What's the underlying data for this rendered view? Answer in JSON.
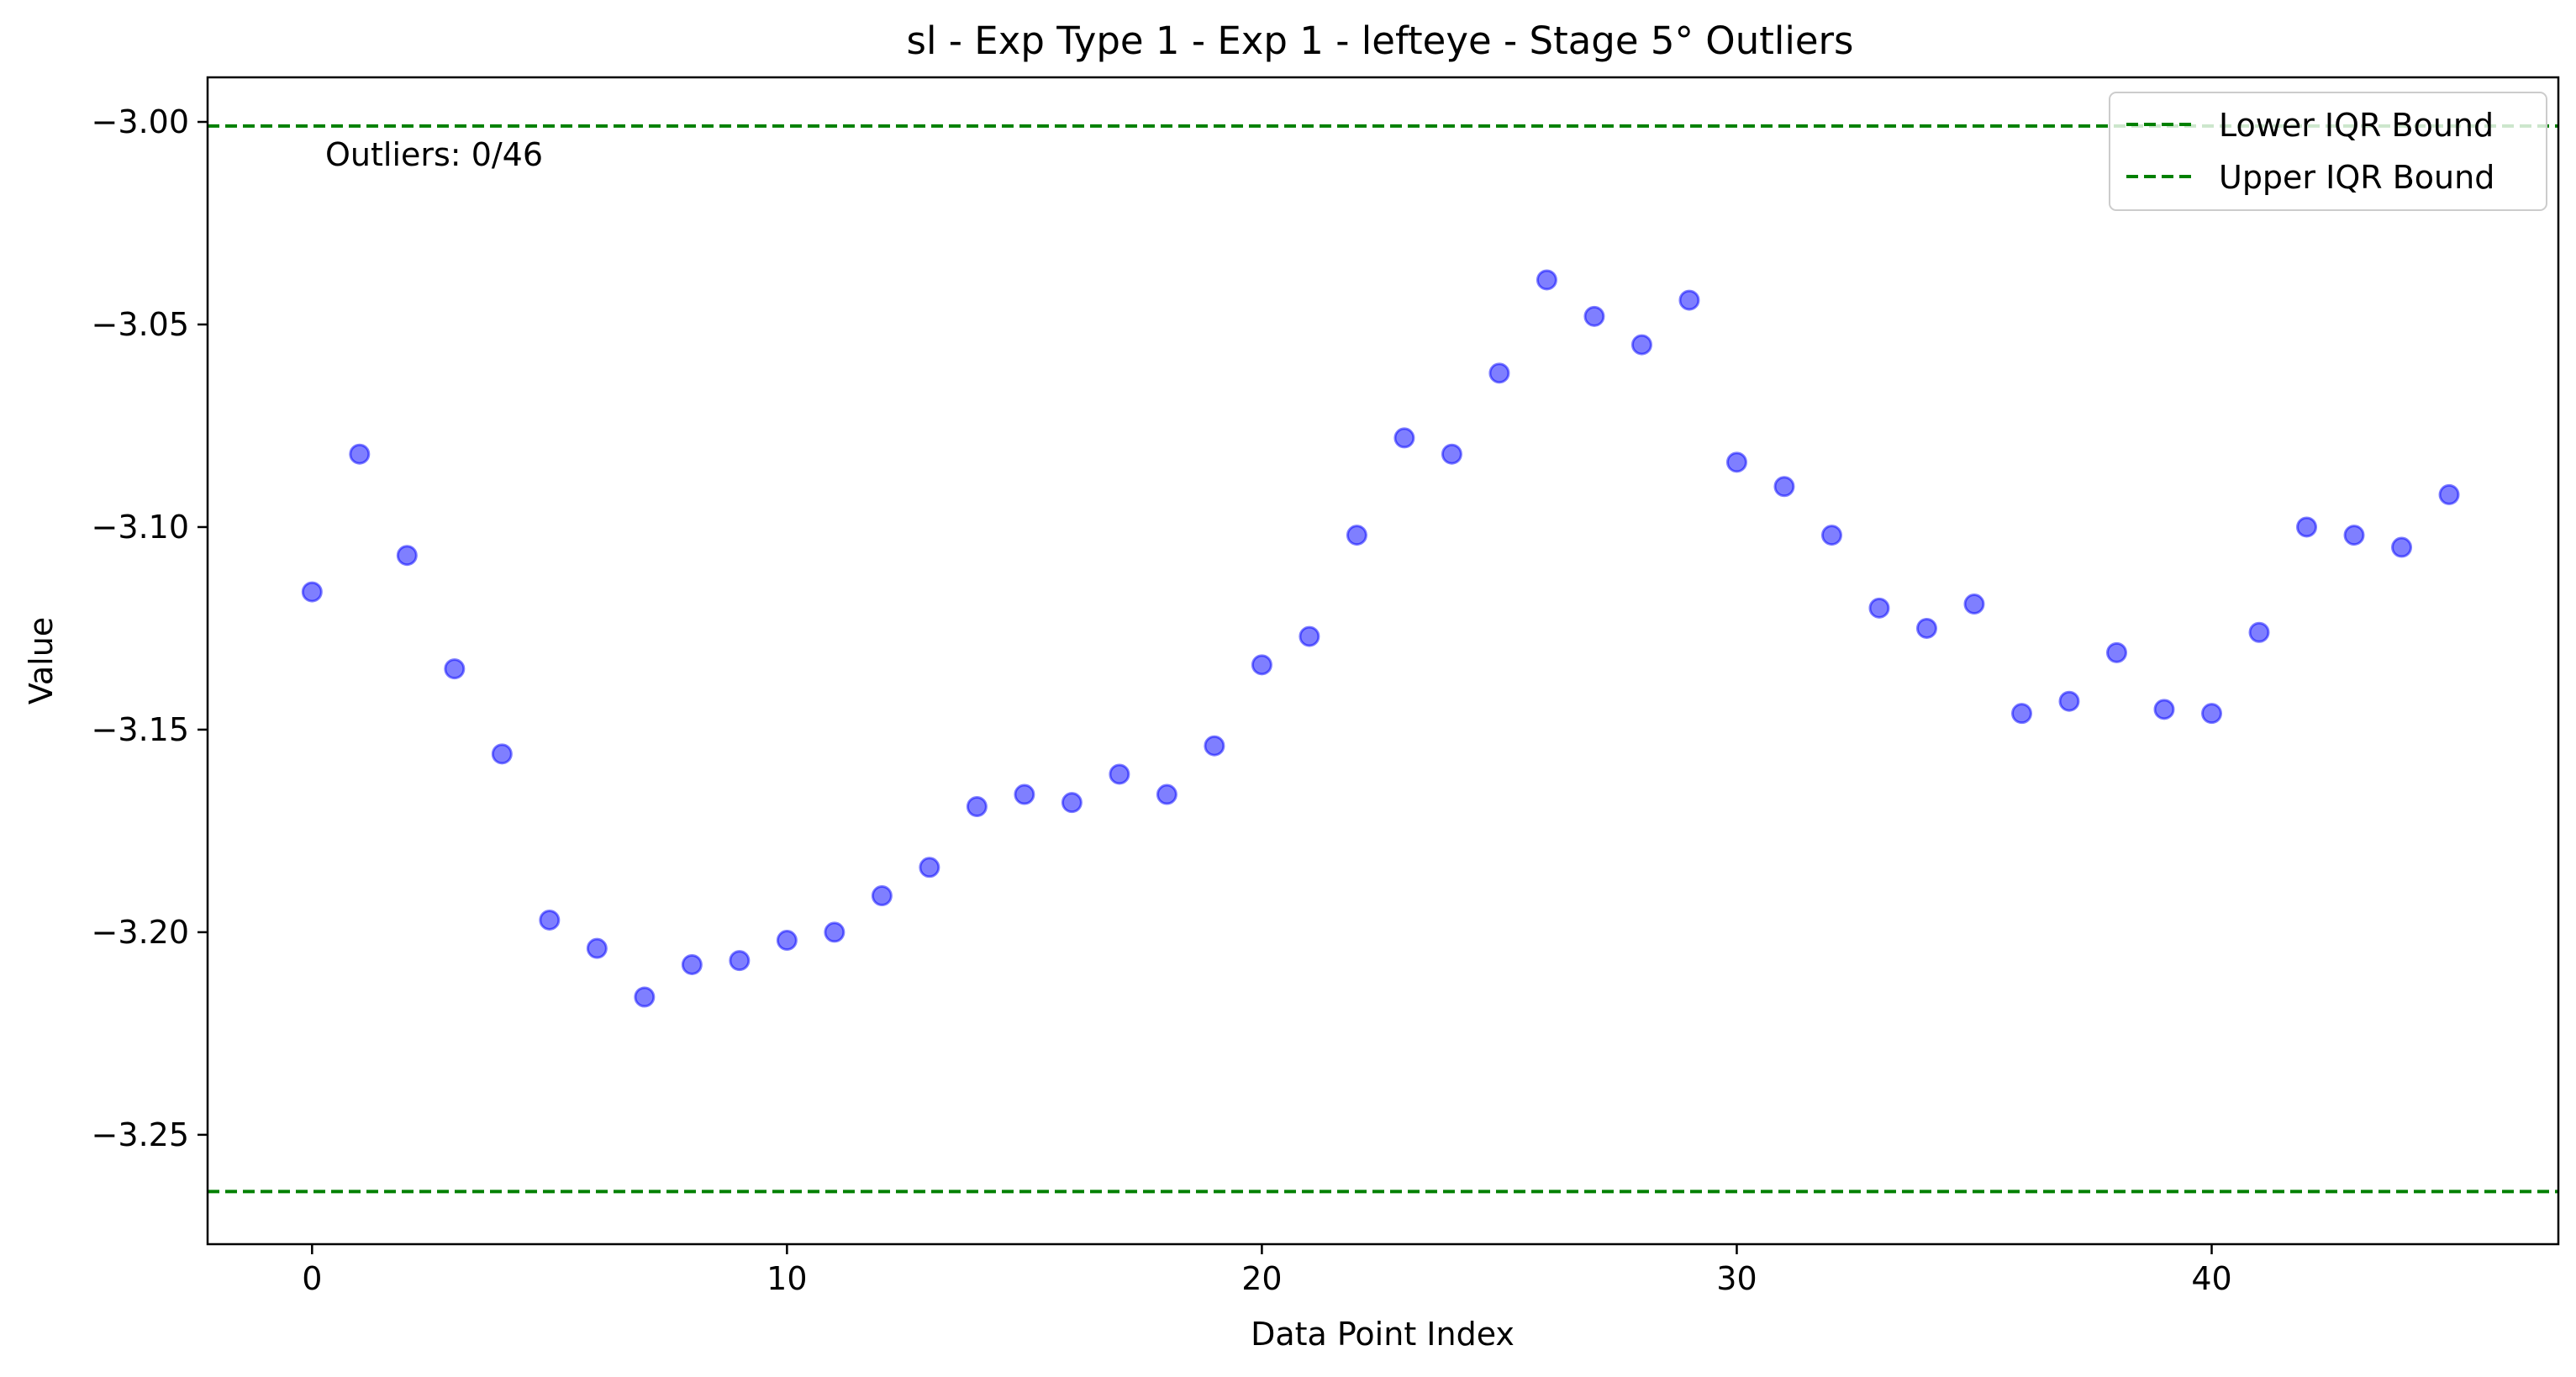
{
  "chart_data": {
    "type": "scatter",
    "title": "sl - Exp Type 1 - Exp 1 - lefteye - Stage 5° Outliers",
    "xlabel": "Data Point Index",
    "ylabel": "Value",
    "xlim": [
      -2.2,
      47.3
    ],
    "ylim": [
      -3.277,
      -2.989
    ],
    "xticks": [
      0,
      10,
      20,
      30,
      40
    ],
    "xtick_labels": [
      "0",
      "10",
      "20",
      "30",
      "40"
    ],
    "yticks": [
      -3.0,
      -3.05,
      -3.1,
      -3.15,
      -3.2,
      -3.25
    ],
    "ytick_labels": [
      "−3.00",
      "−3.05",
      "−3.10",
      "−3.15",
      "−3.20",
      "−3.25"
    ],
    "grid": false,
    "legend_position": "top-right",
    "annotation": "Outliers: 0/46",
    "colors": {
      "points": "#0000ff",
      "bounds": "#008000"
    },
    "series": [
      {
        "x": [
          0,
          1,
          2,
          3,
          4,
          5,
          6,
          7,
          8,
          9,
          10,
          11,
          12,
          13,
          14,
          15,
          16,
          17,
          18,
          19,
          20,
          21,
          22,
          23,
          24,
          25,
          26,
          27,
          28,
          29,
          30,
          31,
          32,
          33,
          34,
          35,
          36,
          37,
          38,
          39,
          40,
          41,
          42,
          43,
          44,
          45
        ],
        "y": [
          -3.116,
          -3.082,
          -3.107,
          -3.135,
          -3.156,
          -3.197,
          -3.204,
          -3.216,
          -3.208,
          -3.207,
          -3.202,
          -3.2,
          -3.191,
          -3.184,
          -3.169,
          -3.166,
          -3.168,
          -3.161,
          -3.166,
          -3.154,
          -3.134,
          -3.127,
          -3.102,
          -3.078,
          -3.082,
          -3.062,
          -3.039,
          -3.048,
          -3.055,
          -3.044,
          -3.084,
          -3.09,
          -3.102,
          -3.12,
          -3.125,
          -3.119,
          -3.146,
          -3.143,
          -3.131,
          -3.145,
          -3.146,
          -3.126,
          -3.1,
          -3.102,
          -3.105,
          -3.092
        ]
      }
    ],
    "bounds": [
      {
        "name": "Lower IQR Bound",
        "value": -3.264
      },
      {
        "name": "Upper IQR Bound",
        "value": -3.001
      }
    ]
  }
}
